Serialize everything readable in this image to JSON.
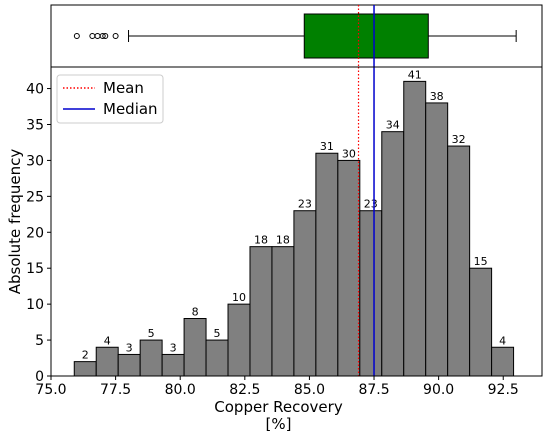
{
  "chart_data": {
    "type": "bar",
    "subtype": "histogram_with_boxplot",
    "xlabel": "Copper Recovery",
    "xlabel_unit": "[%]",
    "ylabel": "Absolute frequency",
    "xlim": [
      75.0,
      94.0
    ],
    "ylim": [
      0,
      43
    ],
    "xticks": [
      "75.0",
      "77.5",
      "80.0",
      "82.5",
      "85.0",
      "87.5",
      "90.0",
      "92.5"
    ],
    "yticks": [
      "0",
      "5",
      "10",
      "15",
      "20",
      "25",
      "30",
      "35",
      "40"
    ],
    "bins": [
      {
        "start": 75.9,
        "end": 76.75,
        "count": 2
      },
      {
        "start": 76.75,
        "end": 77.6,
        "count": 4
      },
      {
        "start": 77.6,
        "end": 78.45,
        "count": 3
      },
      {
        "start": 78.45,
        "end": 79.3,
        "count": 5
      },
      {
        "start": 79.3,
        "end": 80.15,
        "count": 3
      },
      {
        "start": 80.15,
        "end": 81.0,
        "count": 8
      },
      {
        "start": 81.0,
        "end": 81.85,
        "count": 5
      },
      {
        "start": 81.85,
        "end": 82.7,
        "count": 10
      },
      {
        "start": 82.7,
        "end": 83.55,
        "count": 18
      },
      {
        "start": 83.55,
        "end": 84.4,
        "count": 18
      },
      {
        "start": 84.4,
        "end": 85.25,
        "count": 23
      },
      {
        "start": 85.25,
        "end": 86.1,
        "count": 31
      },
      {
        "start": 86.1,
        "end": 86.95,
        "count": 30
      },
      {
        "start": 86.95,
        "end": 87.8,
        "count": 23
      },
      {
        "start": 87.8,
        "end": 88.65,
        "count": 34
      },
      {
        "start": 88.65,
        "end": 89.5,
        "count": 41
      },
      {
        "start": 89.5,
        "end": 90.35,
        "count": 38
      },
      {
        "start": 90.35,
        "end": 91.2,
        "count": 32
      },
      {
        "start": 91.2,
        "end": 92.05,
        "count": 15
      },
      {
        "start": 92.05,
        "end": 92.9,
        "count": 4
      }
    ],
    "mean": 86.9,
    "median": 87.5,
    "boxplot": {
      "whisker_low": 78.0,
      "q1": 84.8,
      "median": 87.5,
      "q3": 89.6,
      "whisker_high": 93.0,
      "outliers": [
        76.0,
        76.6,
        76.8,
        77.0,
        77.1,
        77.5
      ]
    },
    "legend": {
      "placement": "top-left",
      "entries": [
        {
          "label": "Mean",
          "style": "dotted",
          "color": "#ff0000"
        },
        {
          "label": "Median",
          "style": "solid",
          "color": "#0000cd"
        }
      ]
    },
    "colors": {
      "bar_fill": "#808080",
      "box_fill": "#008000",
      "mean_line": "#ff0000",
      "median_line": "#0000cd"
    }
  }
}
